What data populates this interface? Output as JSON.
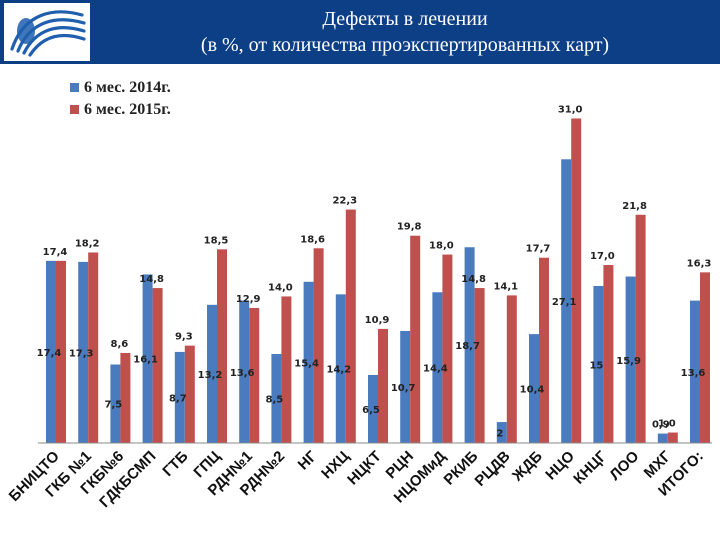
{
  "header": {
    "title_line1": "Дефекты в лечении",
    "title_line2": "(в %, от  количества проэкспертированных карт)",
    "bg_color": "#0c3f86"
  },
  "chart_data": {
    "type": "bar",
    "categories": [
      "БНИЦТО",
      "ГКБ №1",
      "ГКБ№6",
      "ГДКБСМП",
      "ГТБ",
      "ГПЦ",
      "РДН№1",
      "РДН№2",
      "НГ",
      "НХЦ",
      "НЦКТ",
      "РЦН",
      "НЦОМиД",
      "РКИБ",
      "РЦДВ",
      "ЖДБ",
      "НЦО",
      "КНЦГ",
      "ЛОО",
      "МХГ",
      "ИТОГО:"
    ],
    "series": [
      {
        "name": "6 мес.    2014г.",
        "color": "#4a7bbf",
        "values": [
          17.4,
          17.3,
          7.5,
          16.1,
          8.7,
          13.2,
          13.6,
          8.5,
          15.4,
          14.2,
          6.5,
          10.7,
          14.4,
          18.7,
          2,
          10.4,
          27.1,
          15,
          15.9,
          0.9,
          13.6
        ]
      },
      {
        "name": "6 мес.    2015г.",
        "color": "#c0504d",
        "values": [
          17.4,
          18.2,
          8.6,
          14.8,
          9.3,
          18.5,
          12.9,
          14.0,
          18.6,
          22.3,
          10.9,
          19.8,
          18.0,
          14.8,
          14.1,
          17.7,
          31.0,
          17.0,
          21.8,
          1.0,
          16.3
        ]
      }
    ],
    "labels_2014": [
      "17,4",
      "17,3",
      "7,5",
      "16,1",
      "8,7",
      "13,2",
      "13,6",
      "8,5",
      "15,4",
      "14,2",
      "6,5",
      "10,7",
      "14,4",
      "18,7",
      "2",
      "10,4",
      "27,1",
      "15",
      "15,9",
      "0,9",
      "13,6"
    ],
    "labels_2015": [
      "17,4",
      "18,2",
      "8,6",
      "14,8",
      "9,3",
      "18,5",
      "12,9",
      "14,0",
      "18,6",
      "22,3",
      "10,9",
      "19,8",
      "18,0",
      "14,8",
      "14,1",
      "17,7",
      "31,0",
      "17,0",
      "21,8",
      "1,0",
      "16,3"
    ],
    "ylim": [
      0,
      32
    ],
    "legend_position": "top-left",
    "grid": false
  }
}
